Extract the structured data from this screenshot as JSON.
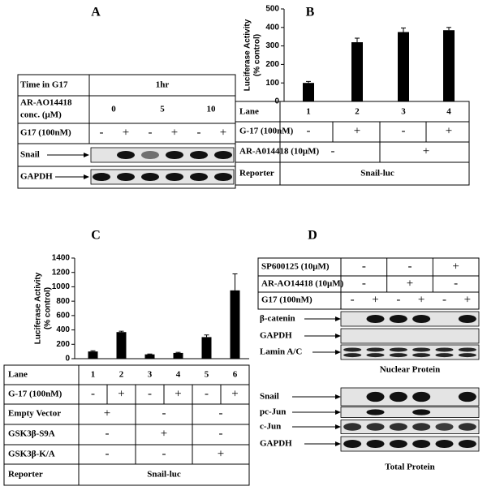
{
  "panel_a": {
    "label": "A",
    "time_label": "Time in G17",
    "time": "1hr",
    "conc_label": [
      "AR-AO14418",
      "conc. (μM)"
    ],
    "conc": [
      "0",
      "5",
      "10"
    ],
    "g17_label": "G17 (100nM)",
    "g17": [
      "-",
      "+",
      "-",
      "+",
      "-",
      "+"
    ],
    "blots": [
      "Snail",
      "GAPDH"
    ]
  },
  "panel_b": {
    "label": "B",
    "lane_label": "Lane",
    "g17_label": "G-17 (100nM)",
    "g17": [
      "-",
      "+",
      "-",
      "+"
    ],
    "ar_label": "AR-A014418 (10μM)",
    "ar": [
      "-",
      "+"
    ],
    "reporter_label": "Reporter",
    "reporter": "Snail-luc"
  },
  "panel_c": {
    "label": "C",
    "lane_label": "Lane",
    "g17_label": "G-17 (100nM)",
    "g17": [
      "-",
      "+",
      "-",
      "+",
      "-",
      "+"
    ],
    "rows": [
      {
        "name": "Empty Vector",
        "values": [
          "+",
          "-",
          "-"
        ]
      },
      {
        "name": "GSK3β-S9A",
        "values": [
          "-",
          "+",
          "-"
        ]
      },
      {
        "name": "GSK3β-K/A",
        "values": [
          "-",
          "-",
          "+"
        ]
      }
    ],
    "reporter_label": "Reporter",
    "reporter": "Snail-luc"
  },
  "panel_d": {
    "label": "D",
    "treatments": [
      {
        "name": "SP600125 (10μM)",
        "values": [
          "-",
          "-",
          "+"
        ]
      },
      {
        "name": "AR-AO14418 (10μM)",
        "values": [
          "-",
          "+",
          "-"
        ]
      },
      {
        "name": "G17 (100nM)",
        "values": [
          "-",
          "+",
          "-",
          "+",
          "-",
          "+"
        ]
      }
    ],
    "nuclear_blots": [
      "β-catenin",
      "GAPDH",
      "Lamin A/C"
    ],
    "nuclear_caption": "Nuclear Protein",
    "total_blots": [
      "Snail",
      "pc-Jun",
      "c-Jun",
      "GAPDH"
    ],
    "total_caption": "Total Protein"
  },
  "chart_data": [
    {
      "type": "bar",
      "ylabel": [
        "Luciferase Activity",
        "(% control)"
      ],
      "categories": [
        "1",
        "2",
        "3",
        "4"
      ],
      "values": [
        100,
        320,
        375,
        385
      ],
      "errors": [
        8,
        22,
        22,
        15
      ],
      "color": "#000000",
      "ylim": [
        0,
        500
      ],
      "yticks": [
        0,
        100,
        200,
        300,
        400,
        500
      ]
    },
    {
      "type": "bar",
      "ylabel": [
        "Luciferase Activity",
        "(% control)"
      ],
      "categories": [
        "1",
        "2",
        "3",
        "4",
        "5",
        "6"
      ],
      "values": [
        100,
        370,
        60,
        80,
        300,
        950
      ],
      "errors": [
        10,
        12,
        5,
        8,
        30,
        230
      ],
      "color": "#000000",
      "ylim": [
        0,
        1400
      ],
      "yticks": [
        0,
        200,
        400,
        600,
        800,
        1000,
        1200,
        1400
      ]
    }
  ]
}
